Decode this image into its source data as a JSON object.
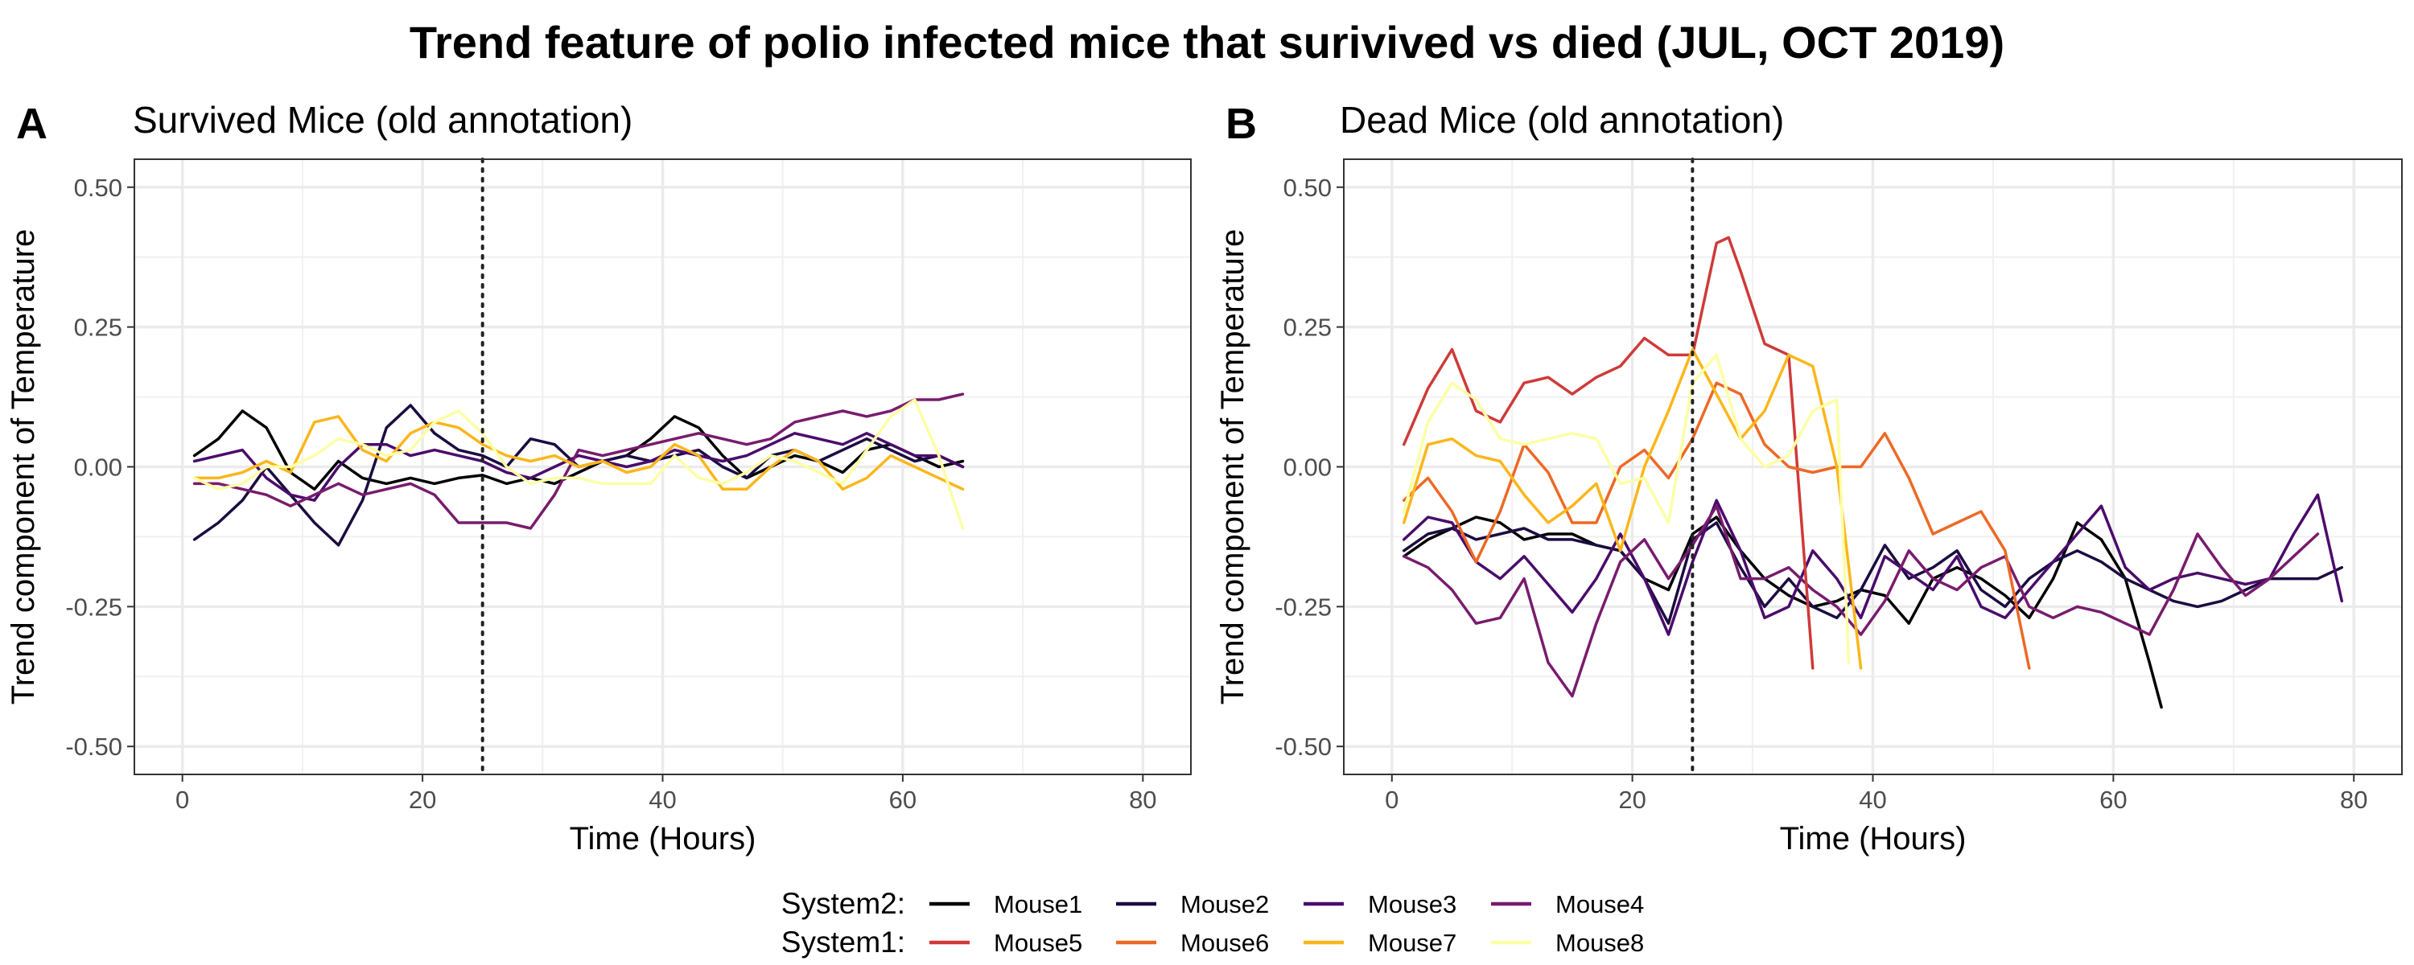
{
  "figure_title": "Trend feature of polio infected mice that surivived vs died (JUL, OCT 2019)",
  "legend": {
    "row1_title": "System2:",
    "row2_title": "System1:",
    "entries": [
      {
        "label": "Mouse1",
        "color": "#000004",
        "row": 0
      },
      {
        "label": "Mouse2",
        "color": "#1b0c41",
        "row": 0
      },
      {
        "label": "Mouse3",
        "color": "#4a0c6b",
        "row": 0
      },
      {
        "label": "Mouse4",
        "color": "#781c6d",
        "row": 0
      },
      {
        "label": "Mouse5",
        "color": "#cf3a38",
        "row": 1
      },
      {
        "label": "Mouse6",
        "color": "#ed6925",
        "row": 1
      },
      {
        "label": "Mouse7",
        "color": "#fbb61a",
        "row": 1
      },
      {
        "label": "Mouse8",
        "color": "#fcffa4",
        "row": 1
      }
    ]
  },
  "chart_data": [
    {
      "type": "line",
      "tag": "A",
      "title": "Survived Mice (old annotation)",
      "xlabel": "Time (Hours)",
      "ylabel": "Trend component of Temperature",
      "xlim": [
        -4,
        84
      ],
      "ylim": [
        -0.55,
        0.55
      ],
      "xticks": [
        0,
        20,
        40,
        60,
        80
      ],
      "xtick_labels": [
        "0",
        "20",
        "40",
        "60",
        "80"
      ],
      "yticks": [
        -0.5,
        -0.25,
        0,
        0.25,
        0.5
      ],
      "ytick_labels": [
        "-0.50",
        "-0.25",
        "0.00",
        "0.25",
        "0.50"
      ],
      "vline_x": 25,
      "vline_style": "dotted",
      "grid": true,
      "series": [
        {
          "name": "Mouse1",
          "x": [
            1,
            3,
            5,
            7,
            9,
            11,
            13,
            15,
            17,
            19,
            21,
            23,
            25,
            27,
            29,
            31,
            33,
            35,
            37,
            39,
            41,
            43,
            45,
            47,
            49,
            51,
            53,
            55,
            57,
            59,
            61,
            63,
            65
          ],
          "y": [
            0.02,
            0.05,
            0.1,
            0.07,
            -0.01,
            -0.04,
            0.01,
            -0.02,
            -0.03,
            -0.02,
            -0.03,
            -0.02,
            -0.015,
            -0.03,
            -0.02,
            -0.03,
            -0.01,
            0.01,
            0.02,
            0.05,
            0.09,
            0.07,
            0.02,
            -0.02,
            0.0,
            0.02,
            0.01,
            -0.01,
            0.03,
            0.04,
            0.02,
            0.0,
            0.01
          ]
        },
        {
          "name": "Mouse2",
          "x": [
            1,
            3,
            5,
            7,
            9,
            11,
            13,
            15,
            17,
            19,
            21,
            23,
            25,
            27,
            29,
            31,
            33,
            35,
            37,
            39,
            41,
            43,
            45,
            47,
            49,
            51,
            53,
            55,
            57,
            59,
            61,
            63,
            65
          ],
          "y": [
            -0.13,
            -0.1,
            -0.06,
            0.0,
            -0.05,
            -0.1,
            -0.14,
            -0.06,
            0.07,
            0.11,
            0.06,
            0.03,
            0.02,
            0.0,
            0.05,
            0.04,
            0.0,
            0.01,
            0.02,
            0.01,
            0.02,
            0.03,
            0.0,
            -0.02,
            0.02,
            0.03,
            0.01,
            0.03,
            0.05,
            0.03,
            0.01,
            0.02,
            0.0
          ]
        },
        {
          "name": "Mouse3",
          "x": [
            1,
            3,
            5,
            7,
            9,
            11,
            13,
            15,
            17,
            19,
            21,
            23,
            25,
            27,
            29,
            31,
            33,
            35,
            37,
            39,
            41,
            43,
            45,
            47,
            49,
            51,
            53,
            55,
            57,
            59,
            61,
            63,
            65
          ],
          "y": [
            0.01,
            0.02,
            0.03,
            -0.02,
            -0.05,
            -0.06,
            0.0,
            0.04,
            0.04,
            0.02,
            0.03,
            0.02,
            0.01,
            -0.01,
            -0.02,
            0.0,
            0.02,
            0.01,
            0.0,
            0.01,
            0.03,
            0.02,
            0.01,
            0.02,
            0.04,
            0.06,
            0.05,
            0.04,
            0.06,
            0.04,
            0.02,
            0.02,
            0.0
          ]
        },
        {
          "name": "Mouse4",
          "x": [
            1,
            3,
            5,
            7,
            9,
            11,
            13,
            15,
            17,
            19,
            21,
            23,
            25,
            27,
            29,
            31,
            33,
            35,
            37,
            39,
            41,
            43,
            45,
            47,
            49,
            51,
            53,
            55,
            57,
            59,
            61,
            63,
            65
          ],
          "y": [
            -0.03,
            -0.03,
            -0.04,
            -0.05,
            -0.07,
            -0.05,
            -0.03,
            -0.05,
            -0.04,
            -0.03,
            -0.05,
            -0.1,
            -0.1,
            -0.1,
            -0.11,
            -0.05,
            0.03,
            0.02,
            0.03,
            0.04,
            0.05,
            0.06,
            0.05,
            0.04,
            0.05,
            0.08,
            0.09,
            0.1,
            0.09,
            0.1,
            0.12,
            0.12,
            0.13
          ]
        },
        {
          "name": "Mouse7",
          "x": [
            1,
            3,
            5,
            7,
            9,
            11,
            13,
            15,
            17,
            19,
            21,
            23,
            25,
            27,
            29,
            31,
            33,
            35,
            37,
            39,
            41,
            43,
            45,
            47,
            49,
            51,
            53,
            55,
            57,
            59,
            61,
            63,
            65
          ],
          "y": [
            -0.02,
            -0.02,
            -0.01,
            0.01,
            -0.01,
            0.08,
            0.09,
            0.03,
            0.01,
            0.06,
            0.08,
            0.07,
            0.04,
            0.02,
            0.01,
            0.02,
            0.0,
            0.01,
            -0.01,
            0.0,
            0.04,
            0.02,
            -0.04,
            -0.04,
            0.0,
            0.03,
            0.01,
            -0.04,
            -0.02,
            0.02,
            0.0,
            -0.02,
            -0.04
          ]
        },
        {
          "name": "Mouse8",
          "x": [
            1,
            3,
            5,
            7,
            9,
            11,
            13,
            15,
            17,
            19,
            21,
            23,
            25,
            27,
            29,
            31,
            33,
            35,
            37,
            39,
            41,
            43,
            45,
            47,
            49,
            51,
            53,
            55,
            57,
            59,
            61,
            63,
            65
          ],
          "y": [
            -0.02,
            -0.04,
            -0.03,
            0.0,
            0.0,
            0.02,
            0.05,
            0.04,
            0.02,
            0.03,
            0.08,
            0.1,
            0.06,
            0.0,
            -0.03,
            -0.02,
            -0.02,
            -0.03,
            -0.03,
            -0.03,
            0.02,
            -0.02,
            -0.03,
            -0.01,
            0.02,
            0.01,
            -0.01,
            -0.03,
            0.03,
            0.09,
            0.12,
            0.02,
            -0.11
          ]
        }
      ]
    },
    {
      "type": "line",
      "tag": "B",
      "title": "Dead Mice (old annotation)",
      "xlabel": "Time (Hours)",
      "ylabel": "Trend component of Temperature",
      "xlim": [
        -4,
        84
      ],
      "ylim": [
        -0.55,
        0.55
      ],
      "xticks": [
        0,
        20,
        40,
        60,
        80
      ],
      "xtick_labels": [
        "0",
        "20",
        "40",
        "60",
        "80"
      ],
      "yticks": [
        -0.5,
        -0.25,
        0,
        0.25,
        0.5
      ],
      "ytick_labels": [
        "-0.50",
        "-0.25",
        "0.00",
        "0.25",
        "0.50"
      ],
      "vline_x": 25,
      "vline_style": "dotted",
      "grid": true,
      "series": [
        {
          "name": "Mouse1",
          "x": [
            1,
            3,
            5,
            7,
            9,
            11,
            13,
            15,
            17,
            19,
            21,
            23,
            25,
            27,
            29,
            31,
            33,
            35,
            37,
            39,
            41,
            43,
            45,
            47,
            49,
            51,
            53,
            55,
            57,
            59,
            61,
            63,
            64
          ],
          "y": [
            -0.16,
            -0.13,
            -0.11,
            -0.09,
            -0.1,
            -0.13,
            -0.12,
            -0.12,
            -0.14,
            -0.15,
            -0.2,
            -0.22,
            -0.12,
            -0.09,
            -0.15,
            -0.2,
            -0.23,
            -0.25,
            -0.24,
            -0.22,
            -0.23,
            -0.28,
            -0.2,
            -0.18,
            -0.2,
            -0.23,
            -0.27,
            -0.2,
            -0.1,
            -0.13,
            -0.2,
            -0.35,
            -0.43
          ]
        },
        {
          "name": "Mouse2",
          "x": [
            1,
            3,
            5,
            7,
            9,
            11,
            13,
            15,
            17,
            19,
            21,
            23,
            25,
            27,
            29,
            31,
            33,
            35,
            37,
            39,
            41,
            43,
            45,
            47,
            49,
            51,
            53,
            55,
            57,
            59,
            61,
            63,
            65,
            67,
            69,
            71,
            73,
            75,
            77,
            79
          ],
          "y": [
            -0.15,
            -0.12,
            -0.11,
            -0.13,
            -0.12,
            -0.11,
            -0.13,
            -0.13,
            -0.14,
            -0.15,
            -0.2,
            -0.28,
            -0.13,
            -0.1,
            -0.18,
            -0.25,
            -0.2,
            -0.25,
            -0.27,
            -0.22,
            -0.14,
            -0.2,
            -0.18,
            -0.15,
            -0.22,
            -0.25,
            -0.2,
            -0.17,
            -0.15,
            -0.17,
            -0.2,
            -0.22,
            -0.24,
            -0.25,
            -0.24,
            -0.22,
            -0.2,
            -0.2,
            -0.2,
            -0.18
          ]
        },
        {
          "name": "Mouse3",
          "x": [
            1,
            3,
            5,
            7,
            9,
            11,
            13,
            15,
            17,
            19,
            21,
            23,
            25,
            27,
            29,
            31,
            33,
            35,
            37,
            39,
            41,
            43,
            45,
            47,
            49,
            51,
            53,
            55,
            57,
            59,
            61,
            63,
            65,
            67,
            69,
            71,
            73,
            75,
            77,
            79
          ],
          "y": [
            -0.13,
            -0.09,
            -0.1,
            -0.17,
            -0.2,
            -0.16,
            -0.21,
            -0.26,
            -0.2,
            -0.12,
            -0.2,
            -0.3,
            -0.17,
            -0.06,
            -0.15,
            -0.27,
            -0.25,
            -0.15,
            -0.2,
            -0.27,
            -0.16,
            -0.19,
            -0.22,
            -0.16,
            -0.25,
            -0.27,
            -0.22,
            -0.17,
            -0.12,
            -0.07,
            -0.18,
            -0.22,
            -0.2,
            -0.19,
            -0.2,
            -0.21,
            -0.2,
            -0.12,
            -0.05,
            -0.24
          ]
        },
        {
          "name": "Mouse4",
          "x": [
            1,
            3,
            5,
            7,
            9,
            11,
            13,
            15,
            17,
            19,
            21,
            23,
            25,
            27,
            29,
            31,
            33,
            35,
            37,
            39,
            41,
            43,
            45,
            47,
            49,
            51,
            53,
            55,
            57,
            59,
            61,
            63,
            65,
            67,
            69,
            71,
            73,
            75,
            77
          ],
          "y": [
            -0.16,
            -0.18,
            -0.22,
            -0.28,
            -0.27,
            -0.2,
            -0.35,
            -0.41,
            -0.28,
            -0.17,
            -0.13,
            -0.2,
            -0.14,
            -0.07,
            -0.2,
            -0.2,
            -0.18,
            -0.22,
            -0.25,
            -0.3,
            -0.24,
            -0.15,
            -0.2,
            -0.22,
            -0.18,
            -0.16,
            -0.25,
            -0.27,
            -0.25,
            -0.26,
            -0.28,
            -0.3,
            -0.22,
            -0.12,
            -0.18,
            -0.23,
            -0.2,
            -0.16,
            -0.12
          ]
        },
        {
          "name": "Mouse5",
          "x": [
            1,
            3,
            5,
            7,
            9,
            11,
            13,
            15,
            17,
            19,
            21,
            23,
            25,
            27,
            28,
            29,
            31,
            33,
            35
          ],
          "y": [
            0.04,
            0.14,
            0.21,
            0.1,
            0.08,
            0.15,
            0.16,
            0.13,
            0.16,
            0.18,
            0.23,
            0.2,
            0.2,
            0.4,
            0.41,
            0.35,
            0.22,
            0.2,
            -0.36
          ]
        },
        {
          "name": "Mouse6",
          "x": [
            1,
            3,
            5,
            7,
            9,
            11,
            13,
            15,
            17,
            19,
            21,
            23,
            25,
            27,
            29,
            31,
            33,
            35,
            37,
            39,
            41,
            43,
            45,
            47,
            49,
            51,
            53
          ],
          "y": [
            -0.06,
            -0.02,
            -0.08,
            -0.17,
            -0.08,
            0.04,
            -0.01,
            -0.1,
            -0.1,
            0.0,
            0.03,
            -0.02,
            0.05,
            0.15,
            0.13,
            0.04,
            0.0,
            -0.01,
            0.0,
            0.0,
            0.06,
            -0.02,
            -0.12,
            -0.1,
            -0.08,
            -0.15,
            -0.36
          ]
        },
        {
          "name": "Mouse7",
          "x": [
            1,
            3,
            5,
            7,
            9,
            11,
            13,
            15,
            17,
            19,
            21,
            23,
            25,
            27,
            29,
            31,
            33,
            35,
            37,
            39
          ],
          "y": [
            -0.1,
            0.04,
            0.05,
            0.02,
            0.01,
            -0.05,
            -0.1,
            -0.07,
            -0.03,
            -0.15,
            0.0,
            0.1,
            0.21,
            0.13,
            0.05,
            0.1,
            0.2,
            0.18,
            0.0,
            -0.36
          ]
        },
        {
          "name": "Mouse8",
          "x": [
            1,
            3,
            5,
            7,
            9,
            11,
            13,
            15,
            17,
            19,
            21,
            23,
            25,
            27,
            29,
            31,
            33,
            35,
            37,
            38
          ],
          "y": [
            -0.08,
            0.08,
            0.15,
            0.12,
            0.05,
            0.04,
            0.05,
            0.06,
            0.05,
            -0.03,
            -0.02,
            -0.1,
            0.15,
            0.2,
            0.05,
            0.0,
            0.02,
            0.1,
            0.12,
            -0.35
          ]
        }
      ]
    }
  ]
}
